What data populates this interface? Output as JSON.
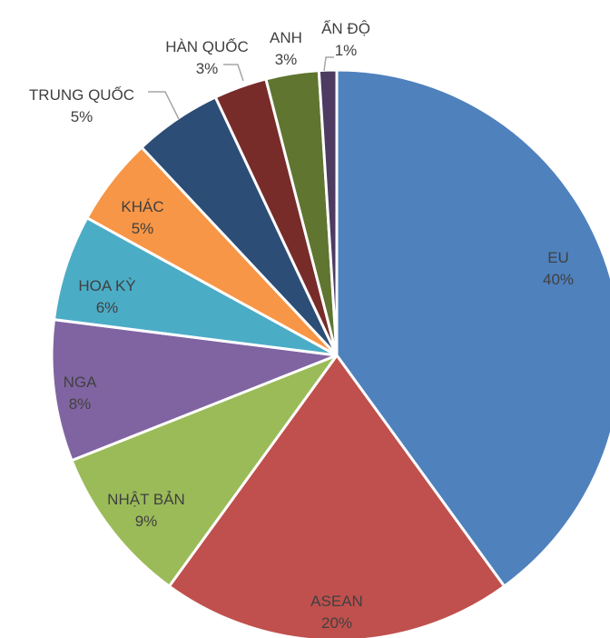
{
  "chart_data": {
    "type": "pie",
    "title": "",
    "legend": "none",
    "slices": [
      {
        "name": "EU",
        "value": 40,
        "label": "40%",
        "color": "#4F81BD"
      },
      {
        "name": "ASEAN",
        "value": 20,
        "label": "20%",
        "color": "#C0504D"
      },
      {
        "name": "NHẬT BẢN",
        "value": 9,
        "label": "9%",
        "color": "#9BBB59"
      },
      {
        "name": "NGA",
        "value": 8,
        "label": "8%",
        "color": "#8064A2"
      },
      {
        "name": "HOA KỲ",
        "value": 6,
        "label": "6%",
        "color": "#4BACC6"
      },
      {
        "name": "KHÁC",
        "value": 5,
        "label": "5%",
        "color": "#F79646"
      },
      {
        "name": "TRUNG QUỐC",
        "value": 5,
        "label": "5%",
        "color": "#2C4D75"
      },
      {
        "name": "HÀN QUỐC",
        "value": 3,
        "label": "3%",
        "color": "#772C2A"
      },
      {
        "name": "ANH",
        "value": 3,
        "label": "3%",
        "color": "#5F7530"
      },
      {
        "name": "ẤN ĐỘ",
        "value": 1,
        "label": "1%",
        "color": "#4D3B62"
      }
    ]
  }
}
